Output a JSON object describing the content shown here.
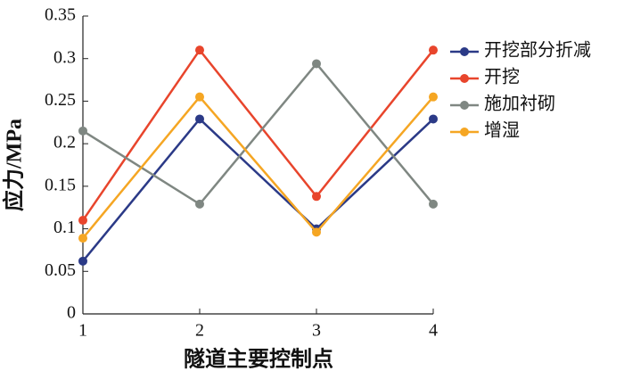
{
  "chart_data": {
    "type": "line",
    "x": [
      1,
      2,
      3,
      4
    ],
    "xlim": [
      1,
      4
    ],
    "xticks": [
      1,
      2,
      3,
      4
    ],
    "ylim": [
      0,
      0.35
    ],
    "yticks": [
      0,
      0.05,
      0.1,
      0.15,
      0.2,
      0.25,
      0.3,
      0.35
    ],
    "xlabel": "隧道主要控制点",
    "ylabel": "应力/MPa",
    "legend": "right",
    "series": [
      {
        "name": "开挖部分折减",
        "color": "#2b3a87",
        "values": [
          0.062,
          0.229,
          0.1,
          0.229
        ]
      },
      {
        "name": "开挖",
        "color": "#e8452c",
        "values": [
          0.11,
          0.31,
          0.138,
          0.31
        ]
      },
      {
        "name": "施加衬砌",
        "color": "#7f8782",
        "values": [
          0.215,
          0.129,
          0.294,
          0.129
        ]
      },
      {
        "name": "增湿",
        "color": "#f5a623",
        "values": [
          0.089,
          0.255,
          0.096,
          0.255
        ]
      }
    ]
  }
}
